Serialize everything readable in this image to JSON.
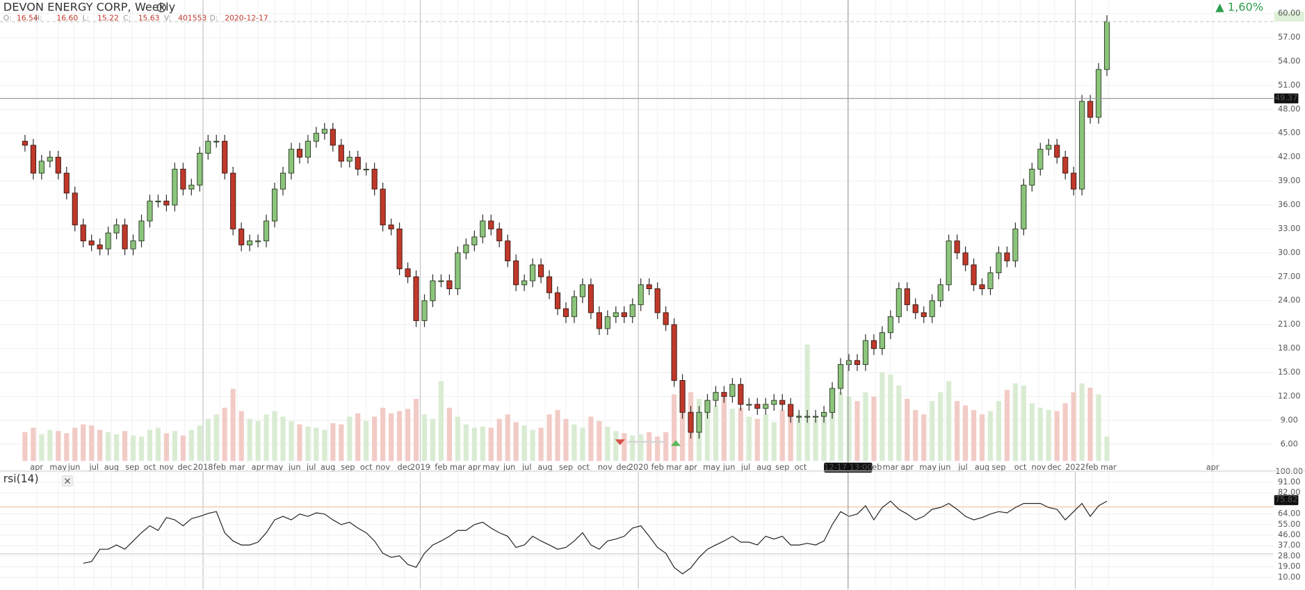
{
  "chart_data": {
    "type": "candlestick",
    "title": "DEVON ENERGY CORP, Weekly",
    "ohlc_header": {
      "labels": [
        "O:",
        "H:",
        "L:",
        "C:",
        "V:",
        "D:"
      ],
      "values": [
        16.54,
        {
          "value": 16.6,
          "label": "16.60"
        },
        15.22,
        15.63,
        401553,
        "2020-12-17"
      ]
    },
    "change": {
      "value": 1.6,
      "label": "▲ 1,60%"
    },
    "crosshair": {
      "time": "12-17 13:00",
      "price": 49.37
    },
    "xlim": [
      -3,
      150
    ],
    "xticks": [
      {
        "value": 1.4,
        "label": "apr"
      },
      {
        "value": 4,
        "label": "may"
      },
      {
        "value": 5.9,
        "label": "jun"
      },
      {
        "value": 8.3,
        "label": "jul"
      },
      {
        "value": 10.4,
        "label": "aug"
      },
      {
        "value": 12.9,
        "label": "sep"
      },
      {
        "value": 15,
        "label": "oct"
      },
      {
        "value": 17,
        "label": "nov"
      },
      {
        "value": 19.2,
        "label": "dec"
      },
      {
        "value": 21.4,
        "label": "2018"
      },
      {
        "value": 23.4,
        "label": "feb"
      },
      {
        "value": 25.5,
        "label": "mar"
      },
      {
        "value": 28,
        "label": "apr"
      },
      {
        "value": 30,
        "label": "may"
      },
      {
        "value": 32.4,
        "label": "jun"
      },
      {
        "value": 34.4,
        "label": "jul"
      },
      {
        "value": 36.4,
        "label": "aug"
      },
      {
        "value": 38.8,
        "label": "sep"
      },
      {
        "value": 41,
        "label": "oct"
      },
      {
        "value": 43,
        "label": "nov"
      },
      {
        "value": 45.6,
        "label": "dec"
      },
      {
        "value": 47.5,
        "label": "2019"
      },
      {
        "value": 50,
        "label": "feb"
      },
      {
        "value": 52,
        "label": "mar"
      },
      {
        "value": 54,
        "label": "apr"
      },
      {
        "value": 56,
        "label": "may"
      },
      {
        "value": 58.2,
        "label": "jun"
      },
      {
        "value": 60.3,
        "label": "jul"
      },
      {
        "value": 62.5,
        "label": "aug"
      },
      {
        "value": 65,
        "label": "sep"
      },
      {
        "value": 67.1,
        "label": "oct"
      },
      {
        "value": 69.7,
        "label": "nov"
      },
      {
        "value": 71.9,
        "label": "dec"
      },
      {
        "value": 73.7,
        "label": "2020"
      },
      {
        "value": 76,
        "label": "feb"
      },
      {
        "value": 78,
        "label": "mar"
      },
      {
        "value": 80,
        "label": "apr"
      },
      {
        "value": 82.5,
        "label": "may"
      },
      {
        "value": 84.6,
        "label": "jun"
      },
      {
        "value": 86.6,
        "label": "jul"
      },
      {
        "value": 88.8,
        "label": "aug"
      },
      {
        "value": 91,
        "label": "sep"
      },
      {
        "value": 93.2,
        "label": "oct"
      },
      {
        "value": 102.2,
        "label": "feb"
      },
      {
        "value": 104,
        "label": "mar"
      },
      {
        "value": 106,
        "label": "apr"
      },
      {
        "value": 108.5,
        "label": "may"
      },
      {
        "value": 110.5,
        "label": "jun"
      },
      {
        "value": 112.7,
        "label": "jul"
      },
      {
        "value": 115,
        "label": "aug"
      },
      {
        "value": 117,
        "label": "sep"
      },
      {
        "value": 119.6,
        "label": "oct"
      },
      {
        "value": 121.8,
        "label": "nov"
      },
      {
        "value": 123.7,
        "label": "dec"
      },
      {
        "value": 126.2,
        "label": "2022"
      },
      {
        "value": 128.2,
        "label": "feb"
      },
      {
        "value": 130.2,
        "label": "mar"
      },
      {
        "value": 142.7,
        "label": "apr"
      }
    ],
    "ylim": [
      3.8,
      61.7
    ],
    "yticks": [
      {
        "value": 6,
        "label": "6.00"
      },
      {
        "value": 9,
        "label": "9.00"
      },
      {
        "value": 12,
        "label": "12.00"
      },
      {
        "value": 15,
        "label": "15.00"
      },
      {
        "value": 18,
        "label": "18.00"
      },
      {
        "value": 21,
        "label": "21.00"
      },
      {
        "value": 24,
        "label": "24.00"
      },
      {
        "value": 27,
        "label": "27.00"
      },
      {
        "value": 30,
        "label": "30.00"
      },
      {
        "value": 33,
        "label": "33.00"
      },
      {
        "value": 36,
        "label": "36.00"
      },
      {
        "value": 39,
        "label": "39.00"
      },
      {
        "value": 42,
        "label": "42.00"
      },
      {
        "value": 45,
        "label": "45.00"
      },
      {
        "value": 48,
        "label": "48.00"
      },
      {
        "value": 51,
        "label": "51.00"
      },
      {
        "value": 54,
        "label": "54.00"
      },
      {
        "value": 57,
        "label": "57.00"
      },
      {
        "value": 60,
        "label": "60.00"
      }
    ],
    "grid": true,
    "up_color": "#8cc47c",
    "down_color": "#c0392b",
    "open": [
      44,
      43.5,
      40,
      41.5,
      42,
      40,
      37.5,
      33.5,
      31.5,
      31,
      30.5,
      32.5,
      33.5,
      30.5,
      31.5,
      34,
      36.5,
      36.5,
      36,
      40.5,
      38,
      38.5,
      42.5,
      44,
      44,
      40,
      33,
      31,
      31.5,
      31.5,
      34,
      38,
      40,
      43,
      42,
      44,
      45,
      45.5,
      43.5,
      41.5,
      42,
      40.5,
      40.5,
      38,
      33.5,
      33,
      28,
      27,
      21.5,
      24,
      26.5,
      26.5,
      25.5,
      30,
      31,
      32,
      34,
      33,
      31.5,
      29,
      26,
      26.5,
      28.5,
      27,
      25,
      23,
      22,
      24.5,
      26,
      22.5,
      20.5,
      22,
      22.5,
      22,
      23.5,
      26,
      25.5,
      22.5,
      21,
      14,
      10,
      7.5,
      10,
      11.5,
      12.5,
      12,
      13.5,
      11,
      11,
      10.5,
      11,
      11.5,
      11,
      9.5,
      9.5,
      9.5,
      9.5,
      10,
      13,
      16,
      16.5,
      16,
      19,
      18,
      20,
      22,
      25.5,
      23.5,
      22.5,
      22,
      24,
      26,
      31.5,
      30,
      28.5,
      26,
      25.5,
      27.5,
      30,
      29,
      33,
      38.5,
      40.5,
      43,
      43.5,
      42,
      40,
      38,
      49,
      47,
      53
    ],
    "high": [
      44.8,
      44.3,
      42.3,
      42.8,
      42.8,
      40.8,
      38.3,
      34.3,
      32.3,
      31.8,
      33.3,
      34.3,
      34.3,
      32.3,
      34.8,
      37.3,
      37.3,
      37.3,
      41.3,
      41.3,
      39.3,
      43.3,
      44.8,
      44.8,
      44.8,
      40.8,
      33.8,
      32.3,
      32.3,
      34.8,
      38.8,
      40.8,
      43.8,
      43.8,
      44.8,
      45.8,
      46.3,
      46.3,
      44.3,
      42.8,
      42.8,
      41.3,
      41.3,
      38.8,
      34.3,
      33.8,
      28.8,
      27.8,
      24.8,
      27.3,
      27.3,
      27.3,
      30.8,
      31.8,
      32.8,
      34.8,
      34.8,
      33.8,
      32.3,
      29.8,
      27.3,
      29.3,
      29.3,
      27.8,
      25.8,
      23.8,
      25.3,
      26.8,
      26.8,
      23.3,
      22.8,
      23.3,
      23.3,
      24.3,
      26.8,
      26.8,
      26.3,
      23.3,
      21.8,
      14.8,
      10.8,
      10.8,
      12.3,
      13.3,
      13.3,
      14.3,
      14.3,
      11.8,
      11.8,
      11.8,
      12.3,
      12.3,
      11.8,
      10.3,
      10.3,
      10.3,
      10.8,
      13.8,
      16.8,
      17.3,
      17.3,
      19.8,
      19.8,
      20.8,
      22.8,
      26.3,
      26.3,
      24.3,
      23.3,
      24.8,
      26.8,
      32.3,
      32.3,
      30.8,
      29.3,
      26.8,
      28.3,
      30.8,
      30.8,
      33.8,
      39.3,
      41.3,
      43.8,
      44.3,
      44.3,
      42.8,
      40.8,
      49.8,
      49.8,
      53.8,
      59.8
    ],
    "low": [
      42.7,
      39.2,
      39.2,
      40.7,
      39.2,
      36.7,
      32.7,
      30.7,
      30.2,
      29.7,
      29.7,
      31.7,
      29.7,
      29.7,
      30.7,
      33.2,
      35.7,
      35.2,
      35.2,
      37.2,
      37.2,
      37.7,
      41.7,
      43.2,
      39.2,
      32.2,
      30.2,
      30.2,
      30.7,
      30.7,
      33.2,
      37.2,
      39.2,
      41.2,
      41.2,
      43.2,
      44.2,
      42.7,
      40.7,
      40.7,
      39.7,
      39.7,
      37.2,
      32.7,
      32.2,
      27.2,
      26.2,
      20.7,
      20.7,
      23.2,
      25.7,
      24.7,
      24.7,
      29.2,
      30.2,
      31.2,
      32.2,
      30.7,
      28.2,
      25.2,
      25.2,
      25.7,
      26.2,
      24.2,
      22.2,
      21.2,
      21.2,
      23.7,
      21.7,
      19.7,
      19.7,
      21.2,
      21.2,
      21.2,
      22.7,
      24.7,
      21.7,
      20.2,
      13.2,
      9.2,
      6.7,
      6.7,
      9.2,
      10.7,
      11.2,
      11.2,
      10.2,
      10.2,
      9.7,
      9.7,
      10.2,
      10.2,
      8.7,
      8.7,
      8.7,
      8.7,
      8.7,
      9.2,
      12.2,
      15.2,
      15.2,
      15.2,
      17.2,
      17.2,
      19.2,
      21.2,
      22.7,
      21.7,
      21.2,
      21.2,
      23.2,
      25.2,
      29.2,
      27.7,
      25.2,
      24.7,
      24.7,
      26.7,
      28.2,
      28.2,
      32.2,
      37.7,
      39.7,
      42.2,
      41.2,
      39.2,
      37.2,
      37.2,
      46.2,
      46.2,
      52.2
    ],
    "close": [
      43.5,
      40,
      41.5,
      42,
      40,
      37.5,
      33.5,
      31.5,
      31,
      30.5,
      32.5,
      33.5,
      30.5,
      31.5,
      34,
      36.5,
      36.5,
      36,
      40.5,
      38,
      38.5,
      42.5,
      44,
      44,
      40,
      33,
      31,
      31.5,
      31.5,
      34,
      38,
      40,
      43,
      42,
      44,
      45,
      45.5,
      43.5,
      41.5,
      42,
      40.5,
      40.5,
      38,
      33.5,
      33,
      28,
      27,
      21.5,
      24,
      26.5,
      26.5,
      25.5,
      30,
      31,
      32,
      34,
      33,
      31.5,
      29,
      26,
      26.5,
      28.5,
      27,
      25,
      23,
      22,
      24.5,
      26,
      22.5,
      20.5,
      22,
      22.5,
      22,
      23.5,
      26,
      25.5,
      22.5,
      21,
      14,
      10,
      7.5,
      10,
      11.5,
      12.5,
      12,
      13.5,
      11,
      11,
      10.5,
      11,
      11.5,
      11,
      9.5,
      9.5,
      9.5,
      9.5,
      10,
      13,
      16,
      16.5,
      16,
      19,
      18,
      20,
      22,
      25.5,
      23.5,
      22.5,
      22,
      24,
      26,
      31.5,
      30,
      28.5,
      26,
      25.5,
      27.5,
      30,
      29,
      33,
      38.5,
      40.5,
      43,
      43.5,
      42,
      40,
      38,
      49,
      47,
      53,
      59
    ],
    "volume": [
      260000,
      300000,
      240000,
      280000,
      270000,
      250000,
      300000,
      330000,
      320000,
      280000,
      260000,
      240000,
      270000,
      230000,
      220000,
      280000,
      300000,
      250000,
      270000,
      230000,
      280000,
      320000,
      380000,
      420000,
      480000,
      650000,
      450000,
      380000,
      360000,
      420000,
      450000,
      400000,
      360000,
      330000,
      310000,
      300000,
      280000,
      340000,
      330000,
      400000,
      430000,
      360000,
      400000,
      480000,
      430000,
      450000,
      470000,
      560000,
      420000,
      380000,
      720000,
      480000,
      400000,
      330000,
      300000,
      310000,
      300000,
      380000,
      420000,
      350000,
      320000,
      280000,
      300000,
      420000,
      460000,
      380000,
      330000,
      300000,
      400000,
      360000,
      310000,
      270000,
      250000,
      230000,
      240000,
      260000,
      220000,
      260000,
      600000,
      680000,
      620000,
      560000,
      520000,
      500000,
      580000,
      470000,
      480000,
      400000,
      380000,
      420000,
      350000,
      460000,
      400000,
      420000,
      1050000,
      380000,
      401553,
      560000,
      620000,
      580000,
      540000,
      620000,
      580000,
      800000,
      780000,
      680000,
      560000,
      460000,
      420000,
      540000,
      620000,
      720000,
      540000,
      500000,
      460000,
      420000,
      450000,
      540000,
      640000,
      700000,
      680000,
      520000,
      480000,
      460000,
      450000,
      520000,
      620000,
      700000,
      660000,
      600000,
      220000
    ],
    "volume_ylim": [
      0,
      1500000
    ],
    "indicator": {
      "name": "rsi(14)",
      "color": "#222222",
      "ylim": [
        0,
        100
      ],
      "yticks": [
        {
          "value": 10,
          "label": "10.00"
        },
        {
          "value": 19,
          "label": "19.00"
        },
        {
          "value": 28,
          "label": "28.00"
        },
        {
          "value": 37,
          "label": "37.00"
        },
        {
          "value": 46,
          "label": "46.00"
        },
        {
          "value": 55,
          "label": "55.00"
        },
        {
          "value": 64,
          "label": "64.00"
        },
        {
          "value": 82,
          "label": "82.00"
        },
        {
          "value": 91,
          "label": "91.00"
        },
        {
          "value": 100,
          "label": "100.00"
        }
      ],
      "levels": [
        70,
        30
      ],
      "last": 75.82,
      "values": [
        null,
        null,
        null,
        null,
        null,
        null,
        null,
        22,
        23.5,
        34,
        34,
        37.6,
        34,
        41,
        48,
        54,
        50,
        61,
        59,
        54,
        60,
        62,
        64.5,
        66,
        48,
        41,
        37.6,
        37.6,
        40,
        48,
        59,
        62,
        59,
        64,
        62,
        65,
        64,
        59,
        55,
        57,
        52,
        48,
        41,
        30.5,
        27,
        28.4,
        21,
        18.5,
        30.5,
        37.6,
        41,
        45,
        50,
        50,
        55,
        57,
        52,
        48,
        45,
        35.5,
        37.6,
        45,
        41,
        37.6,
        34,
        35.5,
        41,
        48,
        37.6,
        34,
        41,
        42.6,
        45,
        52,
        54,
        45,
        35.5,
        30.5,
        18.5,
        13,
        18,
        27,
        34,
        37.6,
        41,
        45,
        40,
        40,
        37.6,
        45,
        42.6,
        45,
        37.6,
        37.6,
        39,
        37.6,
        41,
        55,
        66,
        62,
        64,
        71,
        59,
        69.5,
        75,
        68,
        64,
        59,
        62,
        68,
        69.5,
        73,
        68,
        62,
        59,
        61,
        64,
        66,
        65,
        69.5,
        73,
        73,
        73,
        69.5,
        68,
        59,
        66,
        73,
        62,
        71,
        75
      ]
    }
  }
}
